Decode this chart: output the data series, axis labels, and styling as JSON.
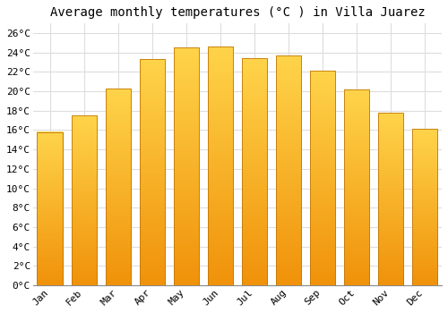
{
  "title": "Average monthly temperatures (°C ) in Villa Juarez",
  "months": [
    "Jan",
    "Feb",
    "Mar",
    "Apr",
    "May",
    "Jun",
    "Jul",
    "Aug",
    "Sep",
    "Oct",
    "Nov",
    "Dec"
  ],
  "values": [
    15.8,
    17.5,
    20.3,
    23.3,
    24.5,
    24.6,
    23.4,
    23.7,
    22.1,
    20.2,
    17.8,
    16.1
  ],
  "bar_color_top": "#FFD44A",
  "bar_color_bottom": "#F0920A",
  "bar_edge_color": "#C07808",
  "background_color": "#FFFFFF",
  "grid_color": "#DDDDDD",
  "ylim": [
    0,
    27
  ],
  "ytick_step": 2,
  "title_fontsize": 10,
  "tick_fontsize": 8,
  "font_family": "monospace"
}
